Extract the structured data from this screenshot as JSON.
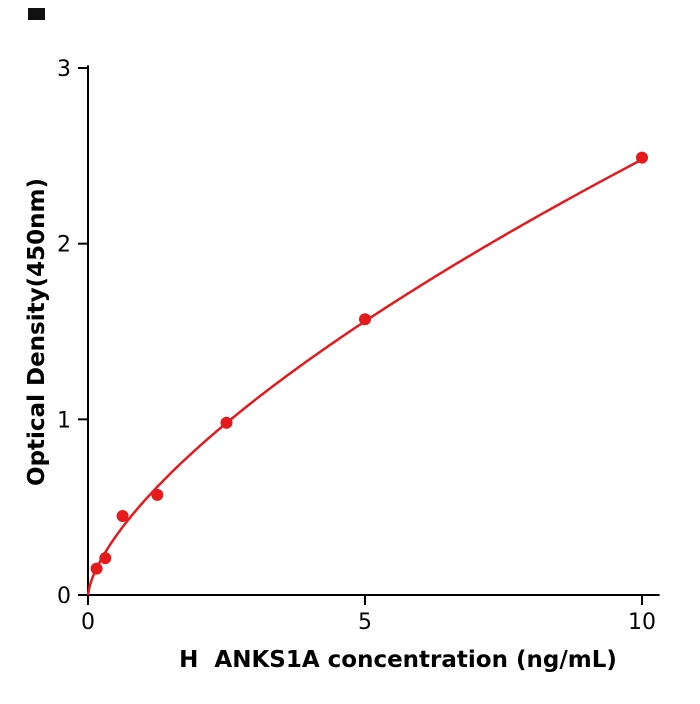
{
  "figure": {
    "background": "#ffffff"
  },
  "chart_data": {
    "type": "scatter",
    "title": "",
    "xlabel": "H  ANKS1A concentration (ng/mL)",
    "ylabel": "Optical Density(450nm)",
    "x": [
      0.156,
      0.313,
      0.625,
      1.25,
      2.5,
      5,
      10
    ],
    "y": [
      0.15,
      0.21,
      0.45,
      0.57,
      0.98,
      1.57,
      2.49
    ],
    "xlim": [
      0,
      10.3
    ],
    "ylim": [
      0,
      3.01
    ],
    "xticks": [
      0,
      5,
      10
    ],
    "yticks": [
      0,
      1,
      2,
      3
    ],
    "grid": false,
    "legend_position": "none",
    "series_color": "#e41a1c",
    "axis_color": "#000000",
    "fit": {
      "type": "power",
      "a": 0.53,
      "b": 0.67
    },
    "marker_size": 6,
    "line_width": 2.5
  }
}
